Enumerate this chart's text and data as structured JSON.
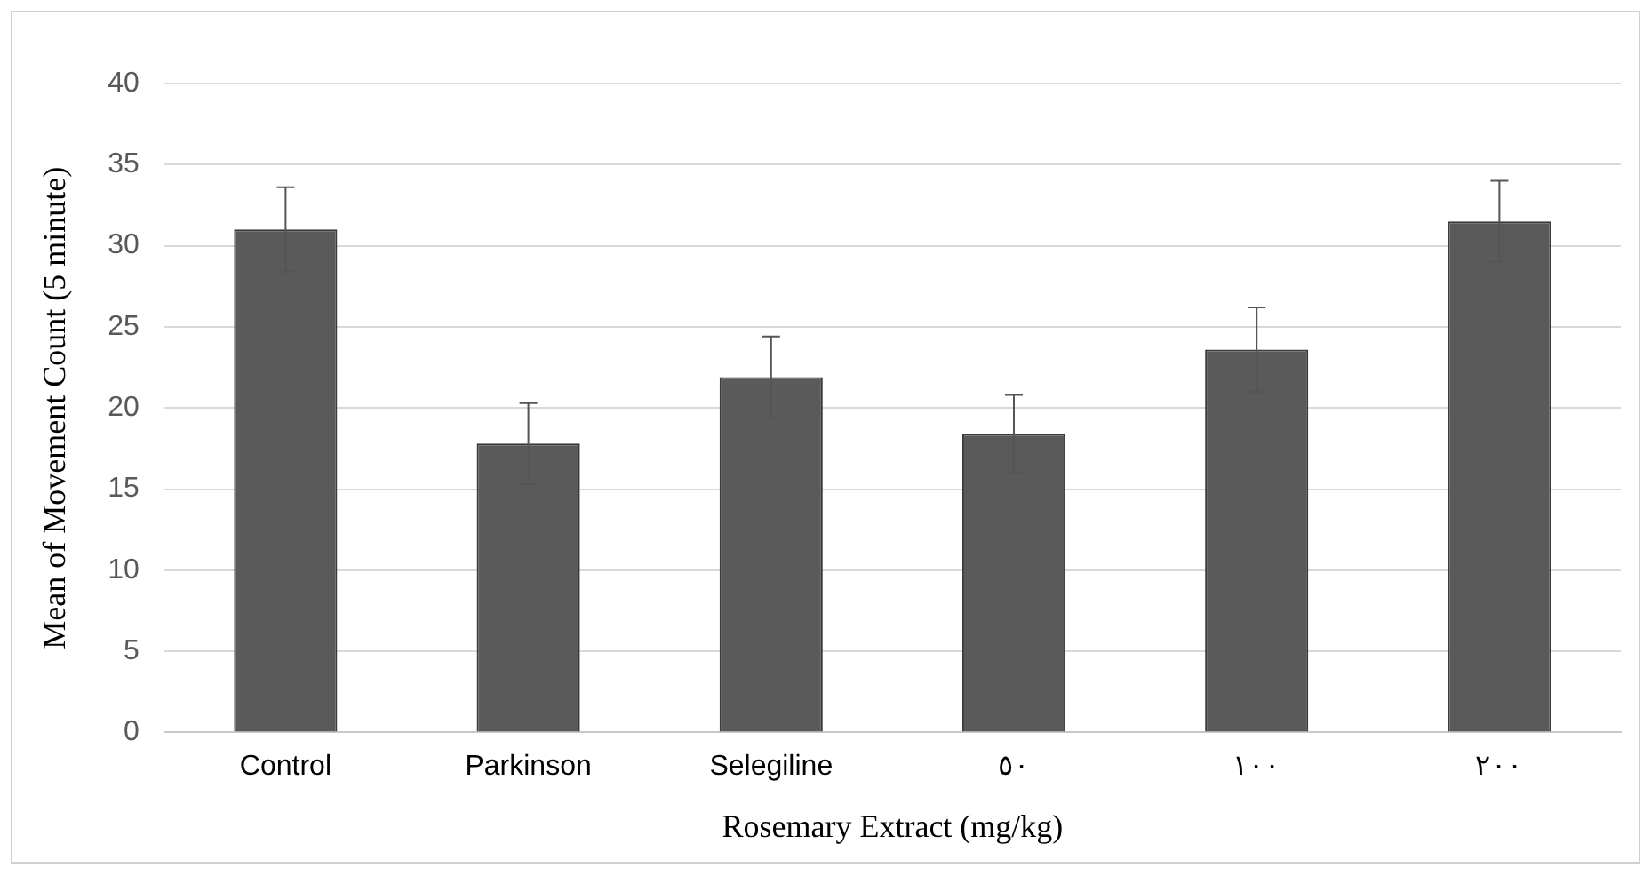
{
  "chart_data": {
    "type": "bar",
    "xlabel": "Rosemary Extract (mg/kg)",
    "ylabel": "Mean of Movement Count (5 minute)",
    "categories": [
      "Control",
      "Parkinson",
      "Selegiline",
      "٥٠",
      "١٠٠",
      "٢٠٠"
    ],
    "values": [
      31,
      17.8,
      21.9,
      18.4,
      23.6,
      31.5
    ],
    "errors": [
      2.6,
      2.5,
      2.5,
      2.4,
      2.6,
      2.5
    ],
    "color": "#5a5a5a",
    "ylim": [
      0,
      40
    ],
    "yticks": [
      0,
      5,
      10,
      15,
      20,
      25,
      30,
      35,
      40
    ],
    "grid": "y",
    "legend": false
  }
}
